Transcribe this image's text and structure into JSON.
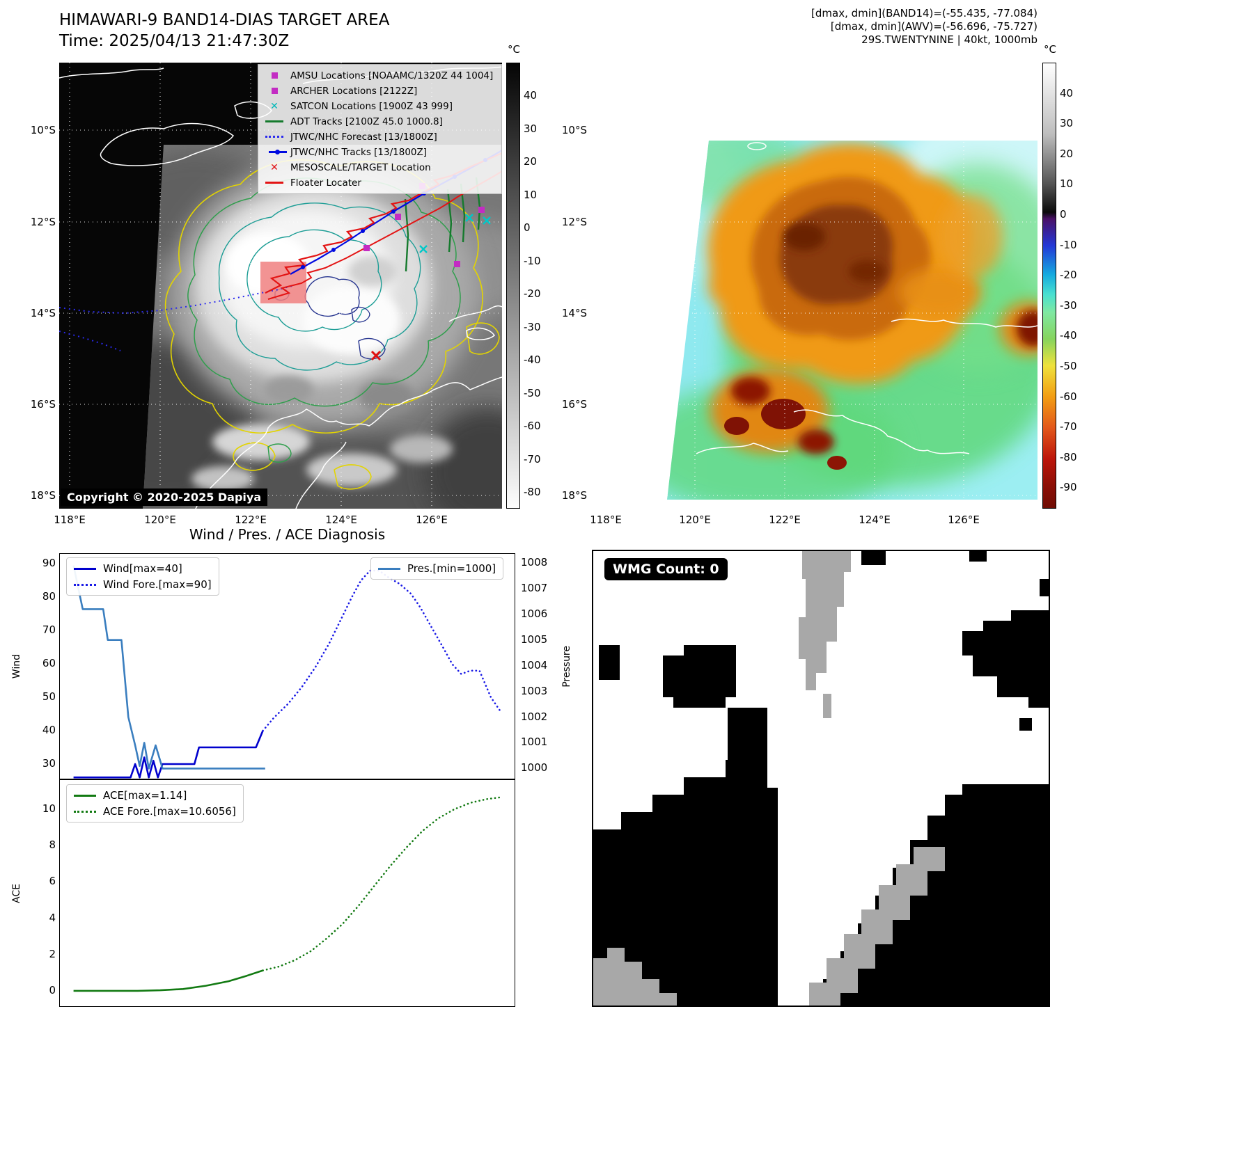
{
  "tl": {
    "title": "HIMAWARI-9 BAND14-DIAS TARGET AREA",
    "subtitle": "Time: 2025/04/13 21:47:30Z",
    "copyright": "Copyright © 2020-2025 Dapiya",
    "colorbar_unit": "°C",
    "colorbar_ticks": [
      40,
      30,
      20,
      10,
      0,
      -10,
      -20,
      -30,
      -40,
      -50,
      -60,
      -70,
      -80
    ],
    "lat_ticks": [
      "10°S",
      "12°S",
      "14°S",
      "16°S",
      "18°S"
    ],
    "lon_ticks": [
      "118°E",
      "120°E",
      "122°E",
      "124°E",
      "126°E"
    ],
    "legend": [
      {
        "label": "AMSU Locations [NOAAMC/1320Z 44 1004]",
        "type": "square",
        "color": "#c32cc3"
      },
      {
        "label": "ARCHER Locations [2122Z]",
        "type": "square",
        "color": "#c32cc3"
      },
      {
        "label": "SATCON Locations [1900Z 43 999]",
        "type": "x",
        "color": "#00b8b8"
      },
      {
        "label": "ADT Tracks [2100Z 45.0 1000.8]",
        "type": "line",
        "color": "#157a2d"
      },
      {
        "label": "JTWC/NHC Forecast [13/1800Z]",
        "type": "dotted",
        "color": "#2a2aee"
      },
      {
        "label": "JTWC/NHC Tracks [13/1800Z]",
        "type": "line-dot",
        "color": "#000ae0"
      },
      {
        "label": "MESOSCALE/TARGET Location",
        "type": "x-bold",
        "color": "#e01010"
      },
      {
        "label": "Floater Locater",
        "type": "line",
        "color": "#e31414"
      }
    ]
  },
  "tr": {
    "header_lines": [
      "[dmax, dmin](BAND14)=(-55.435, -77.084)",
      "[dmax, dmin](AWV)=(-56.696, -75.727)",
      "29S.TWENTYNINE | 40kt, 1000mb"
    ],
    "colorbar_unit": "°C",
    "colorbar_ticks": [
      40,
      30,
      20,
      10,
      0,
      -10,
      -20,
      -30,
      -40,
      -50,
      -60,
      -70,
      -80,
      -90
    ],
    "lat_ticks": [
      "10°S",
      "12°S",
      "14°S",
      "16°S",
      "18°S"
    ],
    "lon_ticks": [
      "118°E",
      "120°E",
      "122°E",
      "124°E",
      "126°E"
    ]
  },
  "br": {
    "label": "WMG Count: 0"
  },
  "chart_data": [
    {
      "type": "line",
      "title": "Wind / Pres. / ACE Diagnosis",
      "xlim": [
        0,
        1
      ],
      "ylim_left": [
        25.2,
        93
      ],
      "ylim_right": [
        999.55,
        1008.35
      ],
      "ylabel_left": "Wind",
      "ylabel_right": "Pressure",
      "yticks_left": [
        90,
        80,
        70,
        60,
        50,
        40,
        30
      ],
      "yticks_right": [
        1008,
        1007,
        1006,
        1005,
        1004,
        1003,
        1002,
        1001,
        1000
      ],
      "legend_position": "upper left / upper right",
      "grid": false,
      "series": [
        {
          "name": "Wind[max=40]",
          "color": "#0000cd",
          "style": "solid",
          "axis": "left",
          "x": [
            0.03,
            0.155,
            0.165,
            0.175,
            0.185,
            0.195,
            0.205,
            0.215,
            0.225,
            0.245,
            0.295,
            0.305,
            0.43,
            0.445
          ],
          "y": [
            26,
            26,
            30,
            26,
            32,
            26,
            31,
            26,
            30,
            30,
            30,
            35,
            35,
            40
          ]
        },
        {
          "name": "Wind Fore.[max=90]",
          "color": "#1a1ae6",
          "style": "dotted",
          "axis": "left",
          "x": [
            0.445,
            0.47,
            0.5,
            0.53,
            0.56,
            0.59,
            0.615,
            0.64,
            0.66,
            0.68,
            0.7,
            0.72,
            0.745,
            0.77,
            0.79,
            0.815,
            0.84,
            0.86,
            0.88,
            0.9,
            0.92,
            0.945,
            0.965
          ],
          "y": [
            40,
            44,
            48,
            53,
            59,
            66,
            73,
            80,
            85,
            88,
            88,
            86,
            84,
            81,
            77,
            71,
            65,
            60,
            57,
            58,
            58,
            50,
            46
          ]
        },
        {
          "name": "Pres.[min=1000]",
          "color": "#3a7ebf",
          "style": "solid",
          "axis": "right",
          "x": [
            0.03,
            0.05,
            0.095,
            0.105,
            0.135,
            0.15,
            0.165,
            0.175,
            0.185,
            0.195,
            0.21,
            0.225,
            0.45
          ],
          "y": [
            1007.9,
            1006.2,
            1006.2,
            1005.0,
            1005.0,
            1002.0,
            1000.9,
            1000.1,
            1001.0,
            1000.0,
            1000.9,
            1000.0,
            1000.0
          ]
        }
      ]
    },
    {
      "type": "line",
      "xlim": [
        0,
        1
      ],
      "ylim_left": [
        -0.9,
        11.6
      ],
      "ylabel_left": "ACE",
      "yticks_left": [
        10,
        8,
        6,
        4,
        2,
        0
      ],
      "grid": false,
      "series": [
        {
          "name": "ACE[max=1.14]",
          "color": "#127a12",
          "style": "solid",
          "axis": "left",
          "x": [
            0.03,
            0.1,
            0.17,
            0.22,
            0.27,
            0.32,
            0.37,
            0.41,
            0.445
          ],
          "y": [
            0.02,
            0.02,
            0.02,
            0.05,
            0.12,
            0.3,
            0.55,
            0.85,
            1.14
          ]
        },
        {
          "name": "ACE Fore.[max=10.6056]",
          "color": "#127a12",
          "style": "dotted",
          "axis": "left",
          "x": [
            0.445,
            0.48,
            0.515,
            0.55,
            0.585,
            0.62,
            0.655,
            0.69,
            0.725,
            0.76,
            0.795,
            0.83,
            0.865,
            0.9,
            0.935,
            0.965
          ],
          "y": [
            1.14,
            1.35,
            1.7,
            2.2,
            2.9,
            3.7,
            4.7,
            5.8,
            6.9,
            7.9,
            8.8,
            9.5,
            10.0,
            10.35,
            10.55,
            10.65
          ]
        }
      ]
    }
  ]
}
